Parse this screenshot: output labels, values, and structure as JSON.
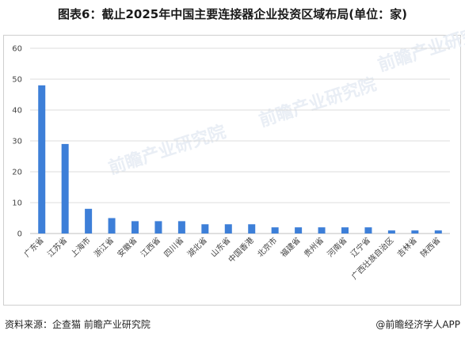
{
  "title": "图表6：截止2025年中国主要连接器企业投资区域布局(单位：家)",
  "footer": {
    "source": "资料来源：企查猫 前瞻产业研究院",
    "brand": "@前瞻经济学人APP"
  },
  "watermark": "前瞻产业研究院",
  "colors": {
    "bar": "#3d7fd8",
    "grid": "#dcdcdc",
    "axis": "#bfbfbf"
  },
  "chart_data": {
    "type": "bar",
    "title": "图表6：截止2025年中国主要连接器企业投资区域布局(单位：家)",
    "categories": [
      "广东省",
      "江苏省",
      "上海市",
      "浙江省",
      "安徽省",
      "江西省",
      "四川省",
      "湖北省",
      "山东省",
      "中国香港",
      "北京市",
      "福建省",
      "贵州省",
      "河南省",
      "辽宁省",
      "广西壮族自治区",
      "吉林省",
      "陕西省"
    ],
    "values": [
      48,
      29,
      8,
      5,
      4,
      4,
      4,
      3,
      3,
      3,
      2,
      2,
      2,
      2,
      2,
      1,
      1,
      1
    ],
    "ylim": [
      0,
      60
    ],
    "yticks": [
      0,
      10,
      20,
      30,
      40,
      50,
      60
    ],
    "grid": true,
    "legend": "none"
  }
}
